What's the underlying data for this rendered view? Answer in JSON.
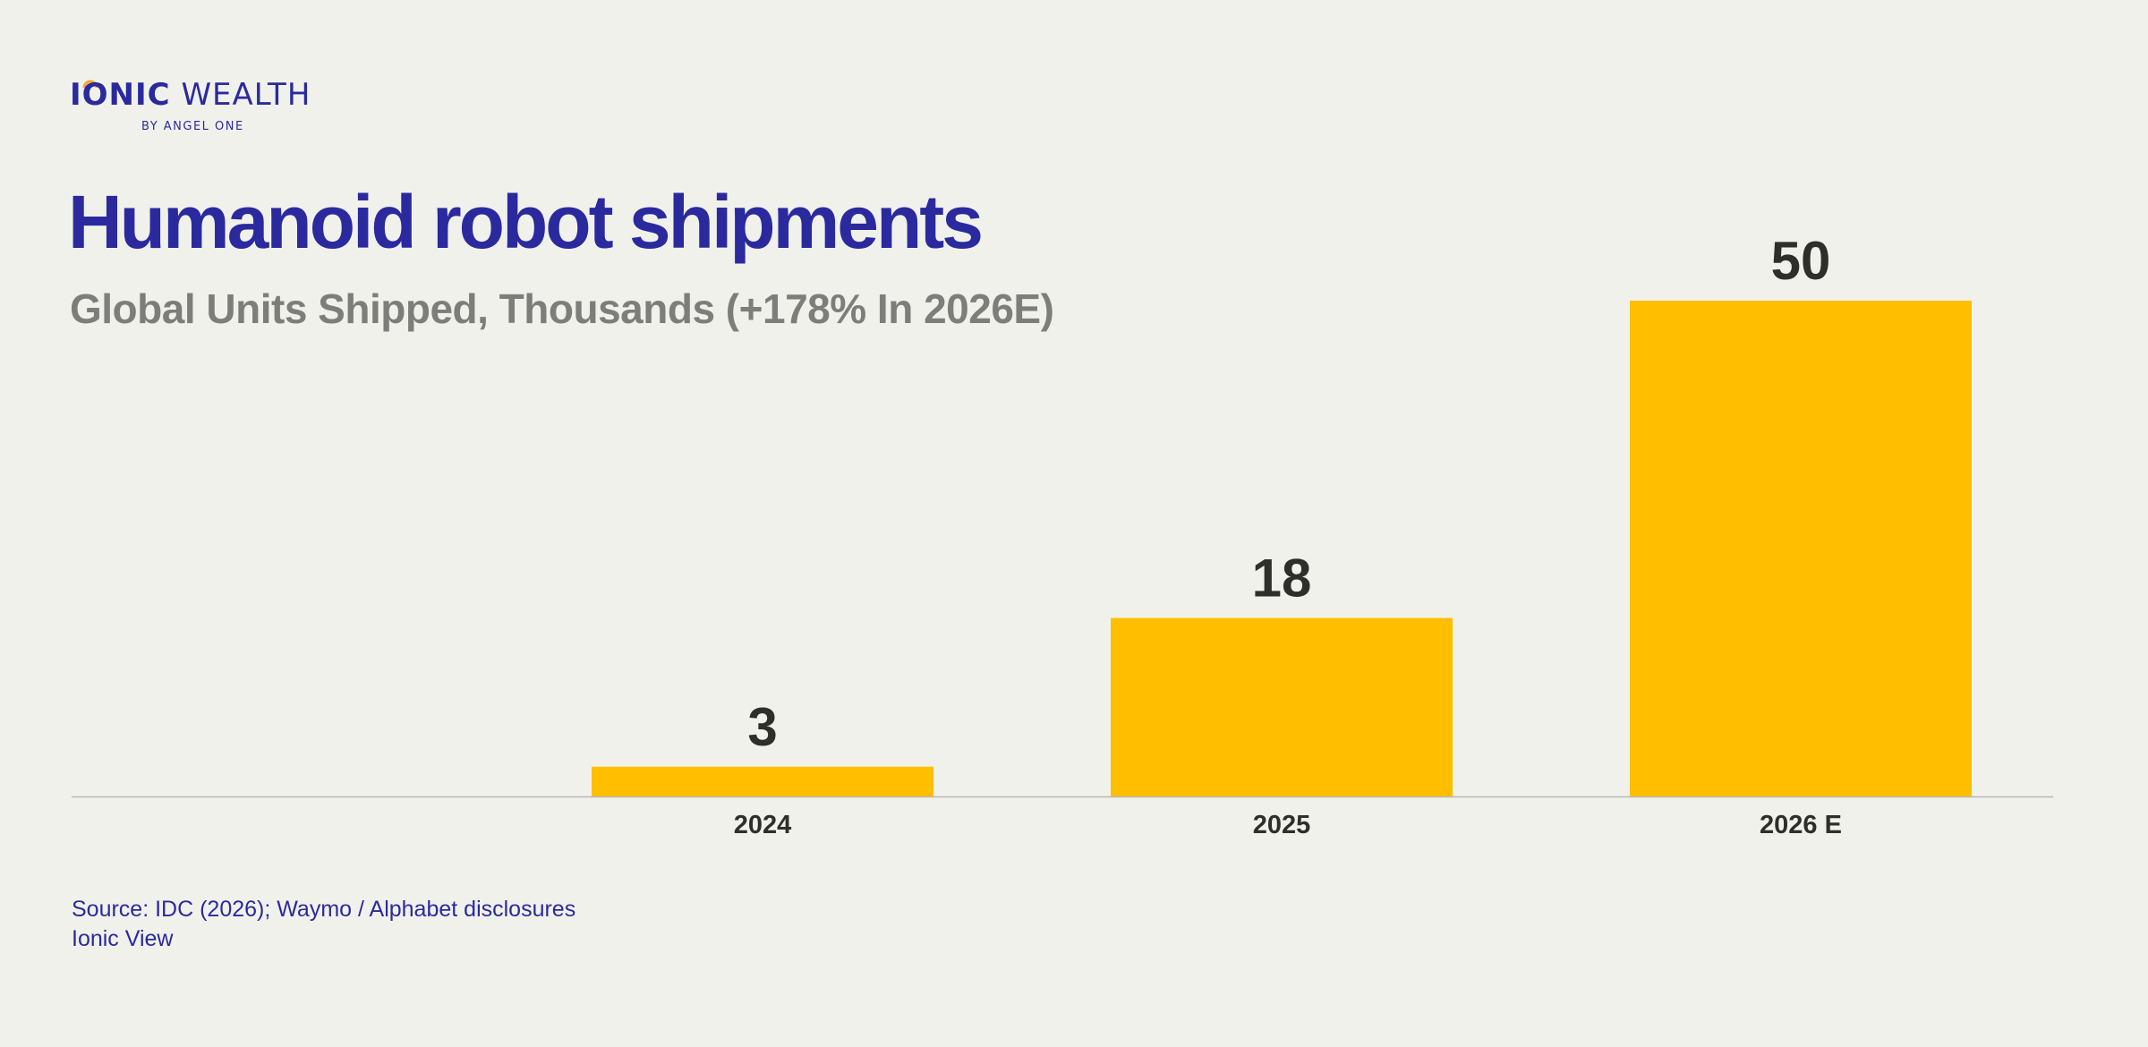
{
  "brand": {
    "name_part1": "IONIC",
    "name_part2": "WEALTH",
    "tagline": "BY ANGEL ONE",
    "primary_color": "#2a2a9e",
    "accent_color": "#f5a623"
  },
  "header": {
    "title": "Humanoid robot shipments",
    "subtitle": "Global Units Shipped, Thousands (+178% In 2026E)"
  },
  "chart_data": {
    "type": "bar",
    "categories": [
      "2024",
      "2025",
      "2026 E"
    ],
    "values": [
      3,
      18,
      50
    ],
    "ylim": [
      0,
      50
    ],
    "bar_color": "#ffbe00",
    "grid": false,
    "data_labels": true
  },
  "footer": {
    "source": "Source: IDC (2026); Waymo / Alphabet disclosures",
    "note": "Ionic View"
  }
}
